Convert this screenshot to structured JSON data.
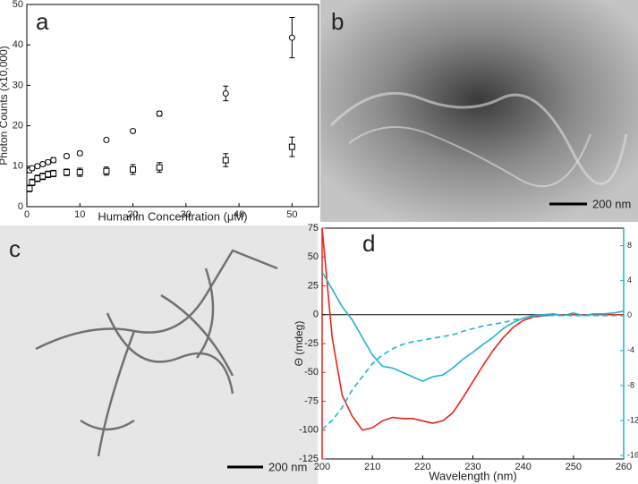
{
  "chart_data": [
    {
      "type": "scatter",
      "label": "a",
      "x_label": "Humanin Concentration (μM)",
      "y_label": "Photon Counts (x10,000)",
      "x": [
        0.5,
        1,
        2,
        3,
        4,
        5,
        7.5,
        10,
        15,
        20,
        25,
        37.5,
        50
      ],
      "xlim": [
        0,
        55
      ],
      "xticks": [
        0,
        10,
        20,
        30,
        40,
        50
      ],
      "ylim": [
        0,
        50
      ],
      "yticks": [
        0,
        10,
        20,
        30,
        40,
        50
      ],
      "series": [
        {
          "marker": "circle",
          "color": "#000000",
          "values": [
            9,
            9.5,
            10,
            10.5,
            11,
            11.5,
            12.5,
            13.2,
            16.5,
            18.7,
            23,
            28,
            41.8
          ],
          "errors": [
            0.6,
            0.5,
            0.5,
            0.5,
            0.5,
            0.6,
            0.5,
            0.5,
            0.4,
            0.4,
            0.6,
            1.8,
            5
          ]
        },
        {
          "marker": "square",
          "color": "#000000",
          "values": [
            4.5,
            6,
            7,
            7.5,
            8,
            8.2,
            8.5,
            8.5,
            8.8,
            9.2,
            9.7,
            11.5,
            14.8
          ],
          "errors": [
            0.8,
            0.8,
            0.8,
            0.8,
            0.8,
            0.8,
            0.8,
            1,
            1,
            1.2,
            1.2,
            1.6,
            2.4
          ]
        }
      ]
    },
    {
      "type": "line",
      "label": "d",
      "x_label": "Wavelength (nm)",
      "y_label": "Θ (mdeg)",
      "x": [
        200,
        202,
        204,
        206,
        208,
        210,
        212,
        214,
        216,
        218,
        220,
        222,
        224,
        226,
        228,
        230,
        232,
        234,
        236,
        238,
        240,
        242,
        244,
        246,
        248,
        250,
        252,
        254,
        256,
        258,
        260
      ],
      "xlim": [
        200,
        260
      ],
      "xticks": [
        200,
        210,
        220,
        230,
        240,
        250,
        260
      ],
      "ylim": [
        -125,
        75
      ],
      "yticks": [
        -125,
        -100,
        -75,
        -50,
        -25,
        0,
        25,
        50,
        75
      ],
      "y2lim": [
        -16.4,
        10
      ],
      "y2ticks": [
        -16,
        -12,
        -8,
        -4,
        0,
        4,
        8
      ],
      "series": [
        {
          "color": "#e8241c",
          "style": "solid",
          "values": [
            75,
            -20,
            -70,
            -88,
            -100,
            -98,
            -92,
            -89,
            -90,
            -90,
            -92,
            -94,
            -92,
            -85,
            -72,
            -58,
            -44,
            -31,
            -20,
            -11,
            -5,
            -2,
            -1,
            0,
            0,
            0,
            0,
            0,
            0,
            0,
            0
          ]
        },
        {
          "color": "#1eb4d2",
          "style": "solid",
          "axis": "y2",
          "values": [
            5,
            3,
            1,
            -0.5,
            -2.5,
            -4.5,
            -5.8,
            -6,
            -6.5,
            -7,
            -7.5,
            -7,
            -6.8,
            -6,
            -5,
            -4.2,
            -3.3,
            -2.5,
            -1.5,
            -0.8,
            -0.3,
            0,
            0.1,
            0.2,
            0,
            0.3,
            0,
            0.2,
            0.2,
            0.3,
            0.5
          ]
        },
        {
          "color": "#1eb4d2",
          "style": "dashed",
          "axis": "y2",
          "values": [
            -13,
            -12,
            -10.5,
            -8.5,
            -7,
            -5.5,
            -4.5,
            -3.8,
            -3.3,
            -3,
            -2.8,
            -2.6,
            -2.4,
            -2.2,
            -1.8,
            -1.5,
            -1.2,
            -1,
            -0.8,
            -0.5,
            -0.3,
            -0.1,
            0,
            0,
            0,
            0,
            0,
            0,
            0,
            0,
            0
          ]
        }
      ]
    }
  ],
  "images": [
    {
      "label": "b",
      "scale_bar": "200 nm"
    },
    {
      "label": "c",
      "scale_bar": "200 nm"
    }
  ]
}
